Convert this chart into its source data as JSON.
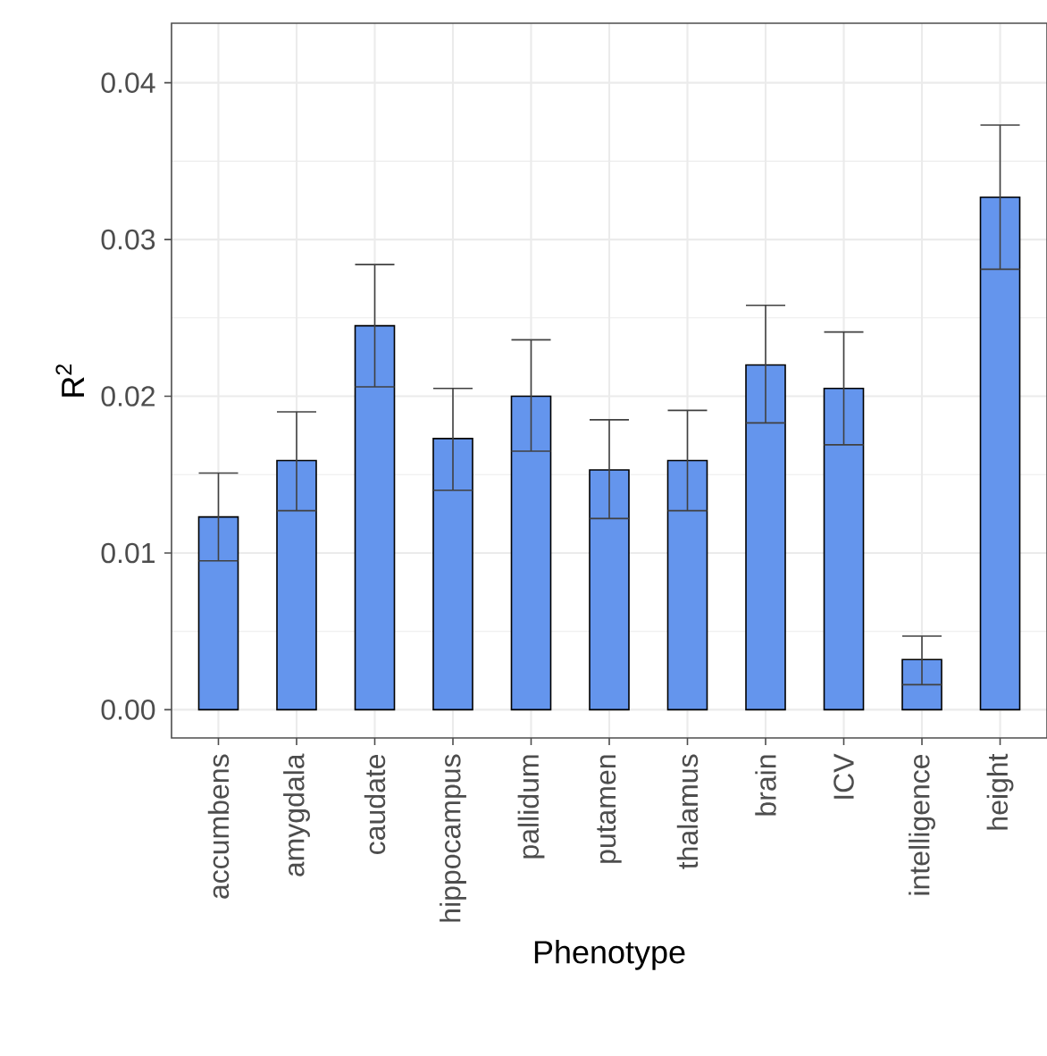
{
  "chart_data": {
    "type": "bar",
    "xlabel": "Phenotype",
    "ylabel": "R$^{2}$",
    "categories": [
      "accumbens",
      "amygdala",
      "caudate",
      "hippocampus",
      "pallidum",
      "putamen",
      "thalamus",
      "brain",
      "ICV",
      "intelligence",
      "height"
    ],
    "values": [
      0.0123,
      0.0159,
      0.0245,
      0.0173,
      0.02,
      0.0153,
      0.0159,
      0.022,
      0.0205,
      0.0032,
      0.0327
    ],
    "errors": [
      [
        0.0095,
        0.0151
      ],
      [
        0.0127,
        0.019
      ],
      [
        0.0206,
        0.0284
      ],
      [
        0.014,
        0.0205
      ],
      [
        0.0165,
        0.0236
      ],
      [
        0.0122,
        0.0185
      ],
      [
        0.0127,
        0.0191
      ],
      [
        0.0183,
        0.0258
      ],
      [
        0.0169,
        0.0241
      ],
      [
        0.0016,
        0.0047
      ],
      [
        0.0281,
        0.0373
      ]
    ],
    "color": "#6495ed",
    "ylim": [
      -0.0018,
      0.0438
    ],
    "yticks": [
      {
        "value": 0,
        "label": "0.00"
      },
      {
        "value": 0.01,
        "label": "0.01"
      },
      {
        "value": 0.02,
        "label": "0.02"
      },
      {
        "value": 0.03,
        "label": "0.03"
      },
      {
        "value": 0.04,
        "label": "0.04"
      }
    ],
    "grid": true
  }
}
